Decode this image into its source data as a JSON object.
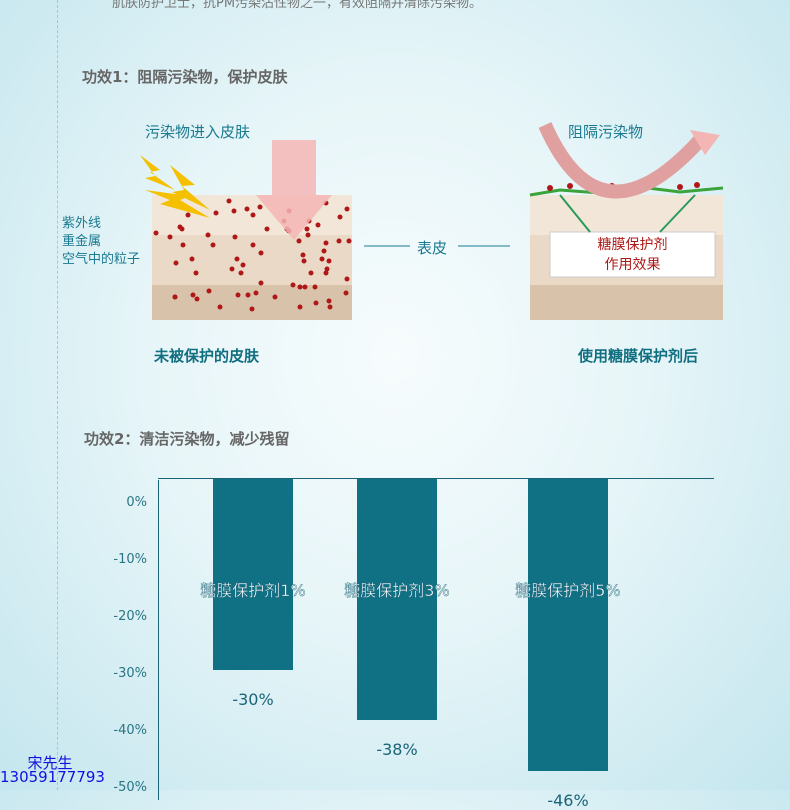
{
  "intro_text": "肌肤防护卫士，抗PM污染沾性物之一，有效阻隔并清除污染物。",
  "section1": {
    "title": "功效1：阻隔污染物，保护皮肤",
    "left_arrow_label": "污染物进入皮肤",
    "sources": [
      "紫外线",
      "重金属",
      "空气中的粒子"
    ],
    "middle_label": "表皮",
    "right_arrow_label": "阻隔污染物",
    "effect_box": [
      "糖膜保护剂",
      "作用效果"
    ],
    "left_caption": "未被保护的皮肤",
    "right_caption": "使用糖膜保护剂后"
  },
  "section2": {
    "title": "功效2：清洁污染物，减少残留"
  },
  "chart_data": {
    "type": "bar",
    "categories": [
      "糖膜保护剂1%",
      "糖膜保护剂3%",
      "糖膜保护剂5%"
    ],
    "values": [
      -30,
      -38,
      -46
    ],
    "value_labels": [
      "-30%",
      "-38%",
      "-46%"
    ],
    "yticks": [
      "0%",
      "-10%",
      "-20%",
      "-30%",
      "-40%",
      "-50%"
    ],
    "ylim": [
      -50,
      0
    ],
    "bar_color": "#107084"
  },
  "contact": {
    "name": "宋先生",
    "phone": "13059177793"
  }
}
